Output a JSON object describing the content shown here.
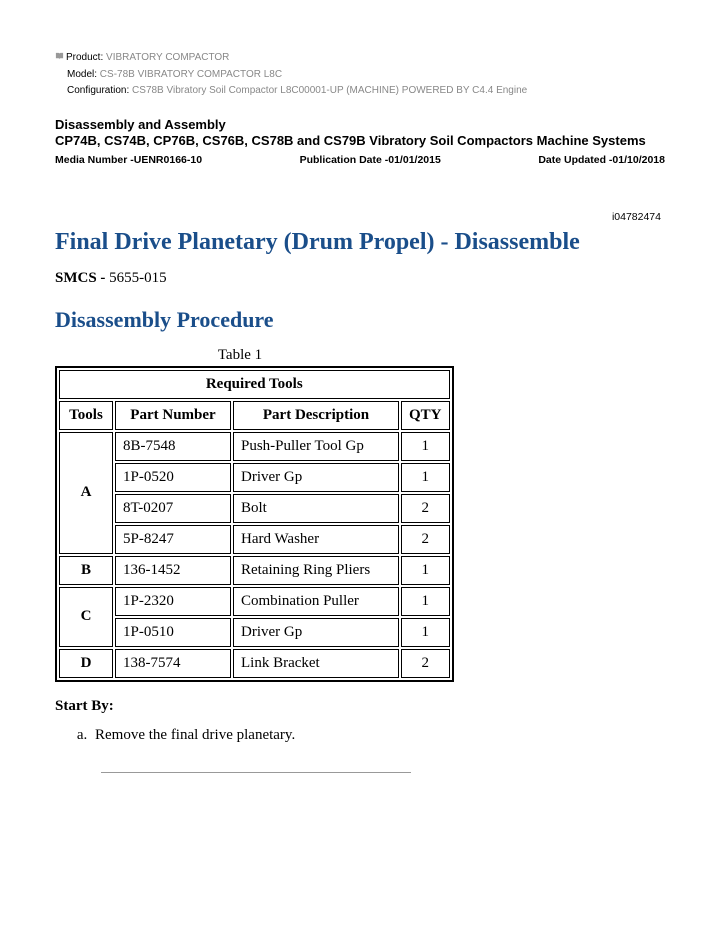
{
  "meta": {
    "product_label": "Product:",
    "product_value": "VIBRATORY COMPACTOR",
    "model_label": "Model:",
    "model_value": "CS-78B VIBRATORY COMPACTOR L8C",
    "config_label": "Configuration:",
    "config_value": "CS78B Vibratory Soil Compactor L8C00001-UP (MACHINE) POWERED BY C4.4 Engine"
  },
  "section": {
    "title": "Disassembly and Assembly",
    "subtitle": "CP74B, CS74B, CP76B, CS76B, CS78B and CS79B Vibratory Soil Compactors Machine Systems",
    "media_number": "Media Number -UENR0166-10",
    "pub_date": "Publication Date -01/01/2015",
    "date_updated": "Date Updated -01/10/2018"
  },
  "doc_id": "i04782474",
  "main_title": "Final Drive Planetary (Drum Propel) - Disassemble",
  "smcs_label": "SMCS -",
  "smcs_value": "5655-015",
  "sub_title": "Disassembly Procedure",
  "table": {
    "caption": "Table 1",
    "header_span": "Required Tools",
    "col_tools": "Tools",
    "col_pn": "Part Number",
    "col_desc": "Part Description",
    "col_qty": "QTY",
    "groups": [
      {
        "tool": "A",
        "rows": [
          {
            "pn": "8B-7548",
            "desc": "Push-Puller Tool Gp",
            "qty": "1"
          },
          {
            "pn": "1P-0520",
            "desc": "Driver Gp",
            "qty": "1"
          },
          {
            "pn": "8T-0207",
            "desc": "Bolt",
            "qty": "2"
          },
          {
            "pn": "5P-8247",
            "desc": "Hard Washer",
            "qty": "2"
          }
        ]
      },
      {
        "tool": "B",
        "rows": [
          {
            "pn": "136-1452",
            "desc": "Retaining Ring Pliers",
            "qty": "1"
          }
        ]
      },
      {
        "tool": "C",
        "rows": [
          {
            "pn": "1P-2320",
            "desc": "Combination Puller",
            "qty": "1"
          },
          {
            "pn": "1P-0510",
            "desc": "Driver Gp",
            "qty": "1"
          }
        ]
      },
      {
        "tool": "D",
        "rows": [
          {
            "pn": "138-7574",
            "desc": "Link Bracket",
            "qty": "2"
          }
        ]
      }
    ]
  },
  "start_by_label": "Start By:",
  "start_by_items": [
    "Remove the final drive planetary."
  ],
  "colors": {
    "heading": "#1a4e8a",
    "muted": "#888888"
  }
}
